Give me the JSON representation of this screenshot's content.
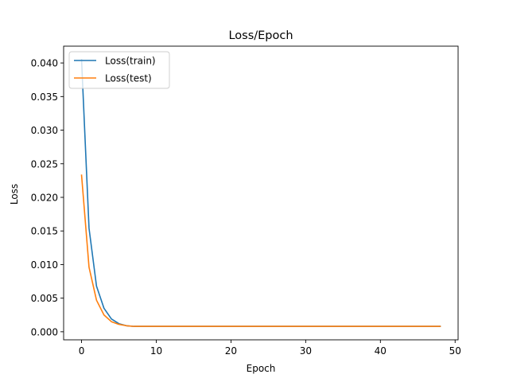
{
  "chart_data": {
    "type": "line",
    "title": "Loss/Epoch",
    "xlabel": "Epoch",
    "ylabel": "Loss",
    "xlim": [
      -2.4,
      50.4
    ],
    "ylim": [
      -0.0012,
      0.0425
    ],
    "xticks": [
      0,
      10,
      20,
      30,
      40,
      50
    ],
    "xtick_labels": [
      "0",
      "10",
      "20",
      "30",
      "40",
      "50"
    ],
    "yticks": [
      0.0,
      0.005,
      0.01,
      0.015,
      0.02,
      0.025,
      0.03,
      0.035,
      0.04
    ],
    "ytick_labels": [
      "0.000",
      "0.005",
      "0.010",
      "0.015",
      "0.020",
      "0.025",
      "0.030",
      "0.035",
      "0.040"
    ],
    "grid": false,
    "legend_position": "top-left",
    "x": [
      0,
      1,
      2,
      3,
      4,
      5,
      6,
      7,
      8,
      9,
      10,
      11,
      12,
      13,
      14,
      15,
      16,
      17,
      18,
      19,
      20,
      21,
      22,
      23,
      24,
      25,
      26,
      27,
      28,
      29,
      30,
      31,
      32,
      33,
      34,
      35,
      36,
      37,
      38,
      39,
      40,
      41,
      42,
      43,
      44,
      45,
      46,
      47,
      48
    ],
    "series": [
      {
        "name": "Loss(train)",
        "color": "#1f77b4",
        "values": [
          0.0405,
          0.0154,
          0.0068,
          0.0035,
          0.0019,
          0.0012,
          0.0009,
          0.0008,
          0.0008,
          0.0008,
          0.0008,
          0.0008,
          0.0008,
          0.0008,
          0.0008,
          0.0008,
          0.0008,
          0.0008,
          0.0008,
          0.0008,
          0.0008,
          0.0008,
          0.0008,
          0.0008,
          0.0008,
          0.0008,
          0.0008,
          0.0008,
          0.0008,
          0.0008,
          0.0008,
          0.0008,
          0.0008,
          0.0008,
          0.0008,
          0.0008,
          0.0008,
          0.0008,
          0.0008,
          0.0008,
          0.0008,
          0.0008,
          0.0008,
          0.0008,
          0.0008,
          0.0008,
          0.0008,
          0.0008,
          0.0008
        ]
      },
      {
        "name": "Loss(test)",
        "color": "#ff7f0e",
        "values": [
          0.0233,
          0.0096,
          0.0047,
          0.0025,
          0.0015,
          0.0011,
          0.0009,
          0.0008,
          0.0008,
          0.0008,
          0.0008,
          0.0008,
          0.0008,
          0.0008,
          0.0008,
          0.0008,
          0.0008,
          0.0008,
          0.0008,
          0.0008,
          0.0008,
          0.0008,
          0.0008,
          0.0008,
          0.0008,
          0.0008,
          0.0008,
          0.0008,
          0.0008,
          0.0008,
          0.0008,
          0.0008,
          0.0008,
          0.0008,
          0.0008,
          0.0008,
          0.0008,
          0.0008,
          0.0008,
          0.0008,
          0.0008,
          0.0008,
          0.0008,
          0.0008,
          0.0008,
          0.0008,
          0.0008,
          0.0008,
          0.0008
        ]
      }
    ]
  }
}
